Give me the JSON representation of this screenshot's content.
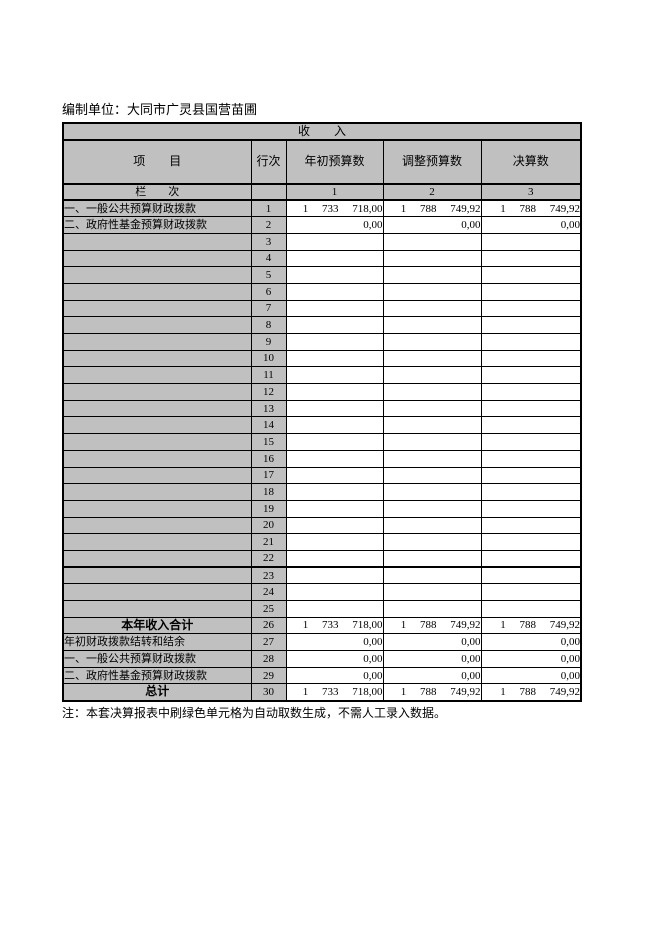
{
  "page": {
    "unit_label": "编制单位：大同市广灵县国营苗圃",
    "note": "注：本套决算报表中刷绿色单元格为自动取数生成，不需人工录入数据。"
  },
  "table": {
    "title": "收　　入",
    "headers": {
      "item": "项　　目",
      "line_no": "行次",
      "col1": "年初预算数",
      "col2": "调整预算数",
      "col3": "决算数"
    },
    "column_index_row": {
      "label": "栏　　次",
      "line_no": "",
      "cols": [
        "1",
        "2",
        "3"
      ]
    },
    "thick_border_above_line": "23",
    "colors": {
      "cell_fill": "#c0c0c0",
      "border": "#000000",
      "page_bg": "#ffffff"
    },
    "rows": [
      {
        "label": "一、一般公共预算财政拨款",
        "line": "1",
        "style": "left",
        "values": [
          "1 733 718,00",
          "1 788 749,92",
          "1 788 749,92"
        ]
      },
      {
        "label": "二、政府性基金预算财政拨款",
        "line": "2",
        "style": "left",
        "values": [
          "0,00",
          "0,00",
          "0,00"
        ]
      },
      {
        "label": "",
        "line": "3",
        "style": "left",
        "values": [
          "",
          "",
          ""
        ]
      },
      {
        "label": "",
        "line": "4",
        "style": "left",
        "values": [
          "",
          "",
          ""
        ]
      },
      {
        "label": "",
        "line": "5",
        "style": "left",
        "values": [
          "",
          "",
          ""
        ]
      },
      {
        "label": "",
        "line": "6",
        "style": "left",
        "values": [
          "",
          "",
          ""
        ]
      },
      {
        "label": "",
        "line": "7",
        "style": "left",
        "values": [
          "",
          "",
          ""
        ]
      },
      {
        "label": "",
        "line": "8",
        "style": "left",
        "values": [
          "",
          "",
          ""
        ]
      },
      {
        "label": "",
        "line": "9",
        "style": "left",
        "values": [
          "",
          "",
          ""
        ]
      },
      {
        "label": "",
        "line": "10",
        "style": "left",
        "values": [
          "",
          "",
          ""
        ]
      },
      {
        "label": "",
        "line": "11",
        "style": "left",
        "values": [
          "",
          "",
          ""
        ]
      },
      {
        "label": "",
        "line": "12",
        "style": "left",
        "values": [
          "",
          "",
          ""
        ]
      },
      {
        "label": "",
        "line": "13",
        "style": "left",
        "values": [
          "",
          "",
          ""
        ]
      },
      {
        "label": "",
        "line": "14",
        "style": "left",
        "values": [
          "",
          "",
          ""
        ]
      },
      {
        "label": "",
        "line": "15",
        "style": "left",
        "values": [
          "",
          "",
          ""
        ]
      },
      {
        "label": "",
        "line": "16",
        "style": "left",
        "values": [
          "",
          "",
          ""
        ]
      },
      {
        "label": "",
        "line": "17",
        "style": "left",
        "values": [
          "",
          "",
          ""
        ]
      },
      {
        "label": "",
        "line": "18",
        "style": "left",
        "values": [
          "",
          "",
          ""
        ]
      },
      {
        "label": "",
        "line": "19",
        "style": "left",
        "values": [
          "",
          "",
          ""
        ]
      },
      {
        "label": "",
        "line": "20",
        "style": "left",
        "values": [
          "",
          "",
          ""
        ]
      },
      {
        "label": "",
        "line": "21",
        "style": "left",
        "values": [
          "",
          "",
          ""
        ]
      },
      {
        "label": "",
        "line": "22",
        "style": "left",
        "values": [
          "",
          "",
          ""
        ]
      },
      {
        "label": "",
        "line": "23",
        "style": "left",
        "values": [
          "",
          "",
          ""
        ]
      },
      {
        "label": "",
        "line": "24",
        "style": "left",
        "values": [
          "",
          "",
          ""
        ]
      },
      {
        "label": "",
        "line": "25",
        "style": "left",
        "values": [
          "",
          "",
          ""
        ]
      },
      {
        "label": "本年收入合计",
        "line": "26",
        "style": "bold-center",
        "values": [
          "1 733 718,00",
          "1 788 749,92",
          "1 788 749,92"
        ]
      },
      {
        "label": "年初财政拨款结转和结余",
        "line": "27",
        "style": "left",
        "values": [
          "0,00",
          "0,00",
          "0,00"
        ]
      },
      {
        "label": "一、一般公共预算财政拨款",
        "line": "28",
        "style": "left",
        "values": [
          "0,00",
          "0,00",
          "0,00"
        ]
      },
      {
        "label": "二、政府性基金预算财政拨款",
        "line": "29",
        "style": "left",
        "values": [
          "0,00",
          "0,00",
          "0,00"
        ]
      },
      {
        "label": "总计",
        "line": "30",
        "style": "bold-center",
        "values": [
          "1 733 718,00",
          "1 788 749,92",
          "1 788 749,92"
        ]
      }
    ]
  }
}
